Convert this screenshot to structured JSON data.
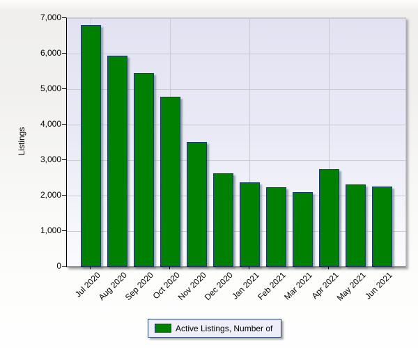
{
  "chart_data": {
    "type": "bar",
    "title": "",
    "categories": [
      "Jul 2020",
      "Aug 2020",
      "Sep 2020",
      "Oct 2020",
      "Nov 2020",
      "Dec 2020",
      "Jan 2021",
      "Feb 2021",
      "Mar 2021",
      "Apr 2021",
      "May 2021",
      "Jun 2021"
    ],
    "values": [
      6800,
      5950,
      5460,
      4780,
      3500,
      2620,
      2380,
      2230,
      2090,
      2740,
      2310,
      2250
    ],
    "xlabel": "",
    "ylabel": "Listings",
    "ylim": [
      0,
      7000
    ],
    "ytick_interval": 1000,
    "ytick_labels": [
      "0",
      "1,000",
      "2,000",
      "3,000",
      "4,000",
      "5,000",
      "6,000",
      "7,000"
    ],
    "xtick_gridline_every": 3,
    "grid": "on",
    "legend_position": "bottom-center",
    "legend_label": "Active Listings, Number of"
  },
  "colors": {
    "bar_fill": "#008000",
    "bar_border": "#1a3b69",
    "plot_bg_top": "#e2e2f2",
    "plot_bg_bottom": "#fbfbfe",
    "gridline": "#c9c9d2",
    "axis": "#000000",
    "legend_bg": "#eeeefb",
    "legend_border": "#1a3b69",
    "text": "#000000"
  }
}
